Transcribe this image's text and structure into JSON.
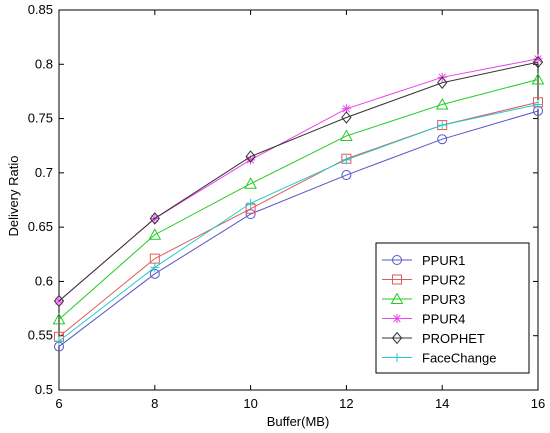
{
  "chart_data": {
    "type": "line",
    "xlabel": "Buffer(MB)",
    "ylabel": "Delivery Ratio",
    "x": [
      6,
      8,
      10,
      12,
      14,
      16
    ],
    "xlim": [
      6,
      16
    ],
    "ylim": [
      0.5,
      0.85
    ],
    "xticks": [
      "6",
      "8",
      "10",
      "12",
      "14",
      "16"
    ],
    "yticks": [
      "0.5",
      "0.55",
      "0.6",
      "0.65",
      "0.7",
      "0.75",
      "0.8",
      "0.85"
    ],
    "grid": false,
    "legend_position": "bottom-right",
    "series": [
      {
        "name": "PPUR1",
        "color": "#5555cc",
        "marker": "circle",
        "values": [
          0.54,
          0.607,
          0.662,
          0.698,
          0.731,
          0.757
        ]
      },
      {
        "name": "PPUR2",
        "color": "#e05a5a",
        "marker": "square",
        "values": [
          0.549,
          0.621,
          0.667,
          0.713,
          0.744,
          0.765
        ]
      },
      {
        "name": "PPUR3",
        "color": "#22cc22",
        "marker": "triangle",
        "values": [
          0.565,
          0.643,
          0.69,
          0.734,
          0.763,
          0.786
        ]
      },
      {
        "name": "PPUR4",
        "color": "#ee44ee",
        "marker": "star",
        "values": [
          0.582,
          0.658,
          0.712,
          0.759,
          0.788,
          0.805
        ]
      },
      {
        "name": "PROPHET",
        "color": "#333333",
        "marker": "diamond",
        "values": [
          0.582,
          0.658,
          0.715,
          0.751,
          0.783,
          0.802
        ]
      },
      {
        "name": "FaceChange",
        "color": "#22cccc",
        "marker": "plus",
        "values": [
          0.545,
          0.613,
          0.672,
          0.712,
          0.744,
          0.763
        ]
      }
    ]
  }
}
